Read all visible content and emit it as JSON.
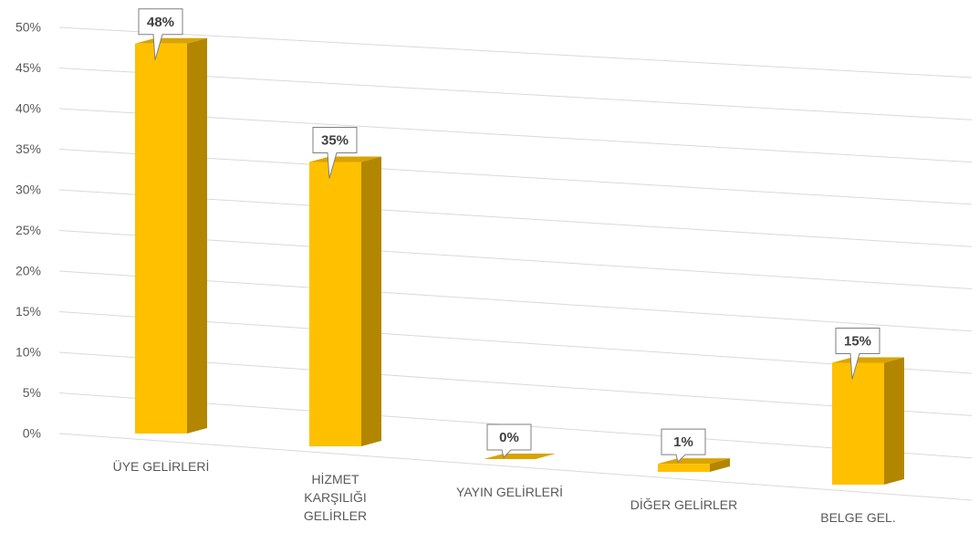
{
  "chart_data": {
    "type": "bar3d",
    "categories": [
      "ÜYE GELİRLERİ",
      "HİZMET KARŞILIĞI GELİRLER",
      "YAYIN GELİRLERİ",
      "DİĞER GELİRLER",
      "BELGE GEL."
    ],
    "values": [
      48,
      35,
      0,
      1,
      15
    ],
    "value_labels": [
      "48%",
      "35%",
      "0%",
      "1%",
      "15%"
    ],
    "color": "#ffc000",
    "ylim": [
      0,
      50
    ],
    "yticks": [
      {
        "value": 0,
        "label": "0%"
      },
      {
        "value": 5,
        "label": "5%"
      },
      {
        "value": 10,
        "label": "10%"
      },
      {
        "value": 15,
        "label": "15%"
      },
      {
        "value": 20,
        "label": "20%"
      },
      {
        "value": 25,
        "label": "25%"
      },
      {
        "value": 30,
        "label": "30%"
      },
      {
        "value": 35,
        "label": "35%"
      },
      {
        "value": 40,
        "label": "40%"
      },
      {
        "value": 45,
        "label": "45%"
      },
      {
        "value": 50,
        "label": "50%"
      }
    ],
    "grid": true
  }
}
